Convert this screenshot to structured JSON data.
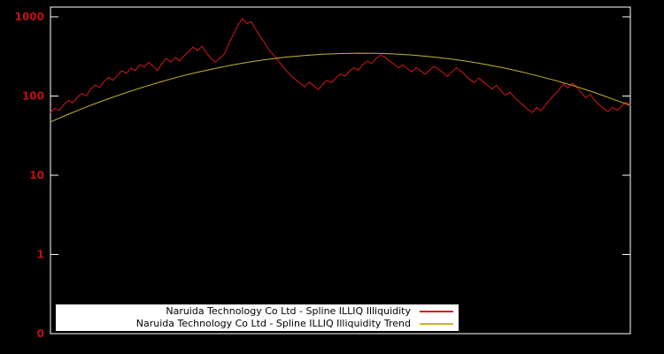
{
  "chart_data": {
    "type": "line",
    "title": "",
    "background_color": "#000000",
    "border_color": "#ffffff",
    "legend_position": "bottom-center-inside",
    "axis": {
      "x_label": "",
      "y_label": "",
      "y_scale": "log",
      "y_range": [
        0.1,
        1327
      ],
      "x_range": [
        0,
        1
      ],
      "grid": false,
      "tick_label_color": "#c41010",
      "y_ticks": [
        {
          "label": "1000",
          "value": 1000
        },
        {
          "label": "100",
          "value": 100
        },
        {
          "label": "10",
          "value": 10
        },
        {
          "label": "1",
          "value": 1
        },
        {
          "label": "0",
          "value": 0.1
        }
      ]
    },
    "series": [
      {
        "name": "Naruida Technology Co Ltd - Spline ILLIQ Illiquidity",
        "color": "#d81616",
        "line_width": 1,
        "values": [
          62,
          70,
          66,
          78,
          88,
          82,
          95,
          108,
          100,
          122,
          138,
          128,
          152,
          172,
          158,
          182,
          208,
          192,
          225,
          210,
          248,
          232,
          268,
          238,
          210,
          258,
          298,
          268,
          308,
          278,
          325,
          365,
          415,
          375,
          428,
          348,
          298,
          268,
          305,
          340,
          460,
          600,
          780,
          950,
          820,
          870,
          700,
          560,
          470,
          380,
          330,
          280,
          240,
          205,
          180,
          160,
          145,
          130,
          150,
          135,
          120,
          140,
          158,
          148,
          170,
          190,
          178,
          205,
          228,
          212,
          248,
          278,
          258,
          298,
          328,
          308,
          278,
          252,
          228,
          248,
          222,
          202,
          228,
          208,
          188,
          212,
          238,
          218,
          198,
          178,
          202,
          228,
          208,
          182,
          162,
          148,
          168,
          152,
          136,
          122,
          136,
          116,
          102,
          112,
          96,
          86,
          76,
          68,
          62,
          72,
          65,
          78,
          90,
          104,
          120,
          142,
          126,
          146,
          130,
          110,
          95,
          105,
          88,
          78,
          70,
          64,
          72,
          66,
          74,
          84,
          78
        ]
      },
      {
        "name": "Naruida Technology Co Ltd - Spline ILLIQ Illiquidity Trend",
        "color": "#c8b432",
        "line_width": 1,
        "values": [
          47,
          59,
          73,
          89,
          107,
          127,
          149,
          173,
          197,
          221,
          246,
          269,
          291,
          310,
          325,
          337,
          344,
          347,
          346,
          339,
          328,
          313,
          295,
          274,
          251,
          227,
          202,
          177,
          154,
          132,
          111,
          92,
          76
        ]
      }
    ]
  }
}
